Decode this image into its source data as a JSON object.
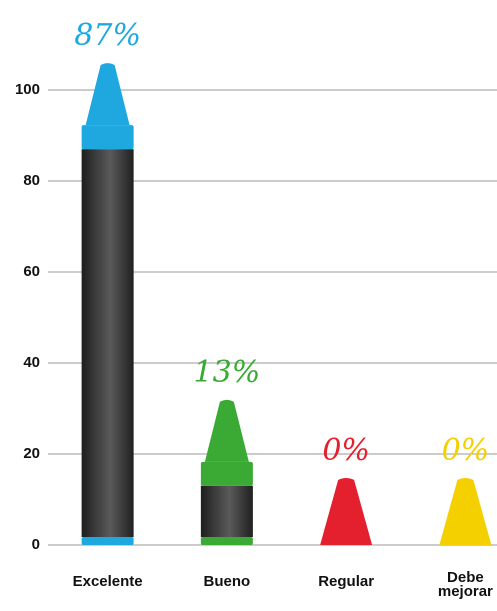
{
  "chart_data": {
    "type": "bar",
    "categories": [
      "Excelente",
      "Bueno",
      "Regular",
      "Debe mejorar"
    ],
    "values": [
      87,
      13,
      0,
      0
    ],
    "value_labels": [
      "87%",
      "13%",
      "0%",
      "0%"
    ],
    "colors": [
      "#1fa8e0",
      "#3aaa35",
      "#e5202e",
      "#f5d000"
    ],
    "ylim": [
      0,
      100
    ],
    "yticks": [
      0,
      20,
      40,
      60,
      80,
      100
    ],
    "grid": true
  }
}
